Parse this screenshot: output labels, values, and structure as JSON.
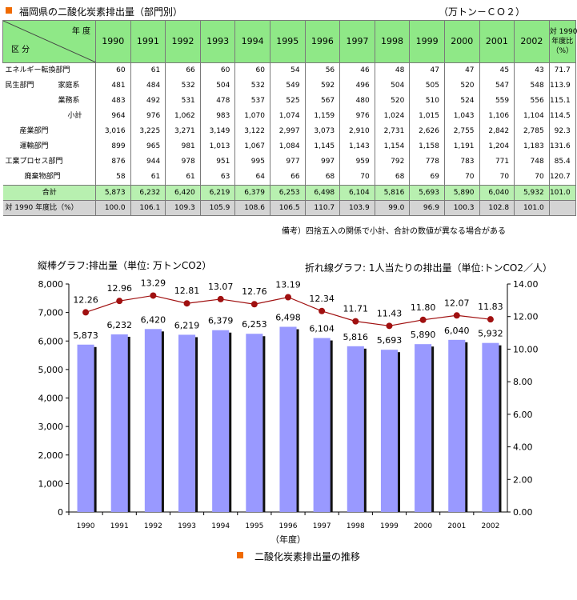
{
  "header": {
    "title": "福岡県の二酸化炭素排出量（部門別）",
    "unit": "（万トン－ＣＯ２）"
  },
  "table": {
    "corner_top": "年 度",
    "corner_bottom": "区 分",
    "years": [
      "1990",
      "1991",
      "1992",
      "1993",
      "1994",
      "1995",
      "1996",
      "1997",
      "1998",
      "1999",
      "2000",
      "2001",
      "2002"
    ],
    "ratio_header": "対 1990\n年度比\n（%）",
    "rows": [
      {
        "label": "エネルギー転換部門",
        "indent": 0,
        "values": [
          "60",
          "61",
          "66",
          "60",
          "60",
          "54",
          "56",
          "46",
          "48",
          "47",
          "47",
          "45",
          "43"
        ],
        "ratio": "71.7"
      },
      {
        "label": "民生部門",
        "sub": "家庭系",
        "indent": 1,
        "values": [
          "481",
          "484",
          "532",
          "504",
          "532",
          "549",
          "592",
          "496",
          "504",
          "505",
          "520",
          "547",
          "548"
        ],
        "ratio": "113.9"
      },
      {
        "label": "",
        "sub": "業務系",
        "indent": 1,
        "values": [
          "483",
          "492",
          "531",
          "478",
          "537",
          "525",
          "567",
          "480",
          "520",
          "510",
          "524",
          "559",
          "556"
        ],
        "ratio": "115.1"
      },
      {
        "label": "",
        "sub": "小計",
        "indent": 2,
        "values": [
          "964",
          "976",
          "1,062",
          "983",
          "1,070",
          "1,074",
          "1,159",
          "976",
          "1,024",
          "1,015",
          "1,043",
          "1,106",
          "1,104"
        ],
        "ratio": "114.5"
      },
      {
        "label": "産業部門",
        "indent": 3,
        "values": [
          "3,016",
          "3,225",
          "3,271",
          "3,149",
          "3,122",
          "2,997",
          "3,073",
          "2,910",
          "2,731",
          "2,626",
          "2,755",
          "2,842",
          "2,785"
        ],
        "ratio": "92.3"
      },
      {
        "label": "運輸部門",
        "indent": 3,
        "values": [
          "899",
          "965",
          "981",
          "1,013",
          "1,067",
          "1,084",
          "1,145",
          "1,143",
          "1,154",
          "1,158",
          "1,191",
          "1,204",
          "1,183"
        ],
        "ratio": "131.6"
      },
      {
        "label": "工業プロセス部門",
        "indent": 4,
        "values": [
          "876",
          "944",
          "978",
          "951",
          "995",
          "977",
          "997",
          "959",
          "792",
          "778",
          "783",
          "771",
          "748"
        ],
        "ratio": "85.4"
      },
      {
        "label": "廃棄物部門",
        "indent": 5,
        "values": [
          "58",
          "61",
          "61",
          "63",
          "64",
          "66",
          "68",
          "70",
          "68",
          "69",
          "70",
          "70",
          "70"
        ],
        "ratio": "120.7"
      }
    ],
    "total": {
      "label": "合計",
      "values": [
        "5,873",
        "6,232",
        "6,420",
        "6,219",
        "6,379",
        "6,253",
        "6,498",
        "6,104",
        "5,816",
        "5,693",
        "5,890",
        "6,040",
        "5,932"
      ],
      "ratio": "101.0"
    },
    "ratio_row": {
      "label": "対 1990 年度比（%）",
      "values": [
        "100.0",
        "106.1",
        "109.3",
        "105.9",
        "108.6",
        "106.5",
        "110.7",
        "103.9",
        "99.0",
        "96.9",
        "100.3",
        "102.8",
        "101.0"
      ]
    }
  },
  "note": "備考）四捨五入の関係で小計、合計の数値が異なる場合がある",
  "chart_data": {
    "type": "bar",
    "title": "二酸化炭素排出量の推移",
    "left_label": "縦棒グラフ:排出量（単位: 万トンCO2）",
    "right_label": "折れ線グラフ: 1人当たりの排出量（単位:トンCO2／人）",
    "xlabel": "（年度）",
    "categories": [
      "1990",
      "1991",
      "1992",
      "1993",
      "1994",
      "1995",
      "1996",
      "1997",
      "1998",
      "1999",
      "2000",
      "2001",
      "2002"
    ],
    "series": [
      {
        "name": "排出量",
        "type": "bar",
        "axis": "left",
        "values": [
          5873,
          6232,
          6420,
          6219,
          6379,
          6253,
          6498,
          6104,
          5816,
          5693,
          5890,
          6040,
          5932
        ],
        "color": "#9999ff"
      },
      {
        "name": "1人当たりの排出量",
        "type": "line",
        "axis": "right",
        "values": [
          12.26,
          12.96,
          13.29,
          12.81,
          13.07,
          12.76,
          13.19,
          12.34,
          11.71,
          11.43,
          11.8,
          12.07,
          11.83
        ],
        "color": "#a01010"
      }
    ],
    "ylim": [
      0,
      8000
    ],
    "yticks": [
      "0",
      "1,000",
      "2,000",
      "3,000",
      "4,000",
      "5,000",
      "6,000",
      "7,000",
      "8,000"
    ],
    "y2lim": [
      0,
      14
    ],
    "y2ticks": [
      "0.00",
      "2.00",
      "4.00",
      "6.00",
      "8.00",
      "10.00",
      "12.00",
      "14.00"
    ],
    "grid": false
  }
}
